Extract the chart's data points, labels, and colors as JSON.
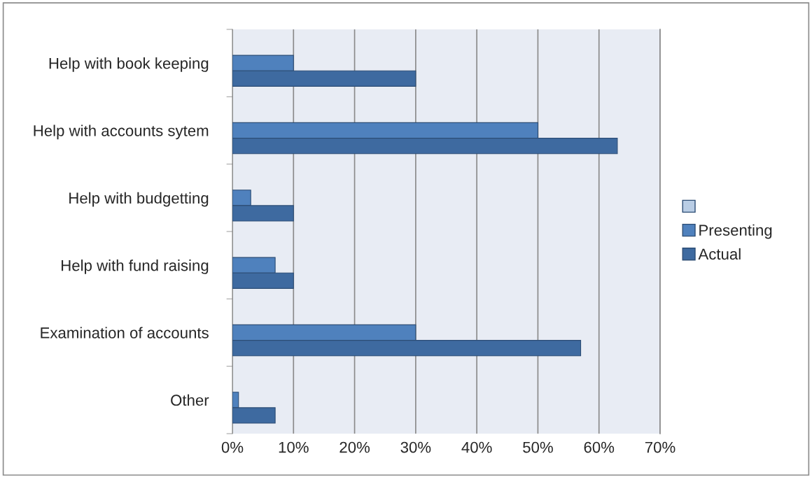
{
  "chart_data": {
    "type": "bar",
    "orientation": "horizontal",
    "categories": [
      "Help with book keeping",
      "Help with accounts sytem",
      "Help with budgetting",
      "Help with fund raising",
      "Examination of accounts",
      "Other"
    ],
    "series": [
      {
        "color": "#b9cde5",
        "values": [
          null,
          null,
          null,
          null,
          null,
          null
        ]
      },
      {
        "name": "Presenting",
        "color": "#4f81bd",
        "values": [
          10,
          50,
          3,
          7,
          30,
          1
        ]
      },
      {
        "name": "Actual",
        "color": "#3e6aa0",
        "values": [
          30,
          63,
          10,
          10,
          57,
          7
        ]
      }
    ],
    "xlim": [
      0,
      70
    ],
    "xticks": [
      {
        "value": 0,
        "label": "0%"
      },
      {
        "value": 10,
        "label": "10%"
      },
      {
        "value": 20,
        "label": "20%"
      },
      {
        "value": 30,
        "label": "30%"
      },
      {
        "value": 40,
        "label": "40%"
      },
      {
        "value": 50,
        "label": "50%"
      },
      {
        "value": 60,
        "label": "60%"
      },
      {
        "value": 70,
        "label": "70%"
      }
    ],
    "grid": "x",
    "legend": "right"
  }
}
